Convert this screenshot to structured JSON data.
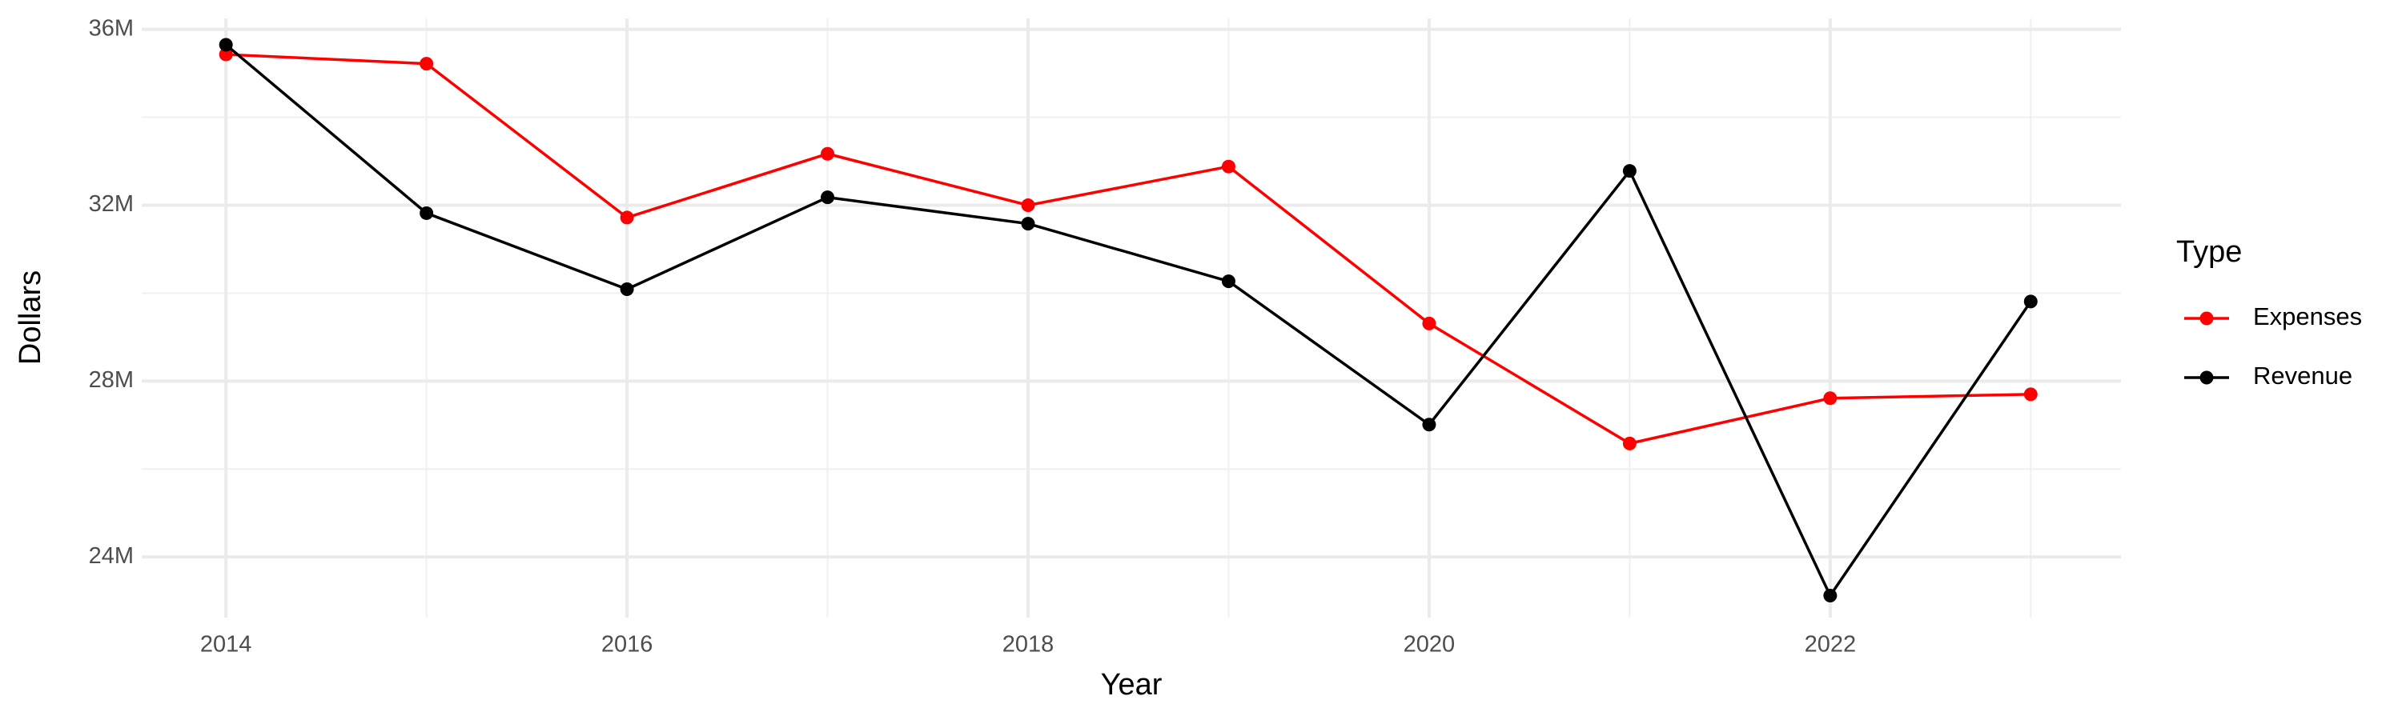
{
  "chart_data": {
    "type": "line",
    "x_label": "Year",
    "y_label": "Dollars",
    "legend_title": "Type",
    "x": [
      2014,
      2015,
      2016,
      2017,
      2018,
      2019,
      2020,
      2021,
      2022,
      2023
    ],
    "series": [
      {
        "name": "Expenses",
        "color": "#ff0000",
        "values": [
          35430000,
          35220000,
          31720000,
          33170000,
          32000000,
          32880000,
          29310000,
          26580000,
          27610000,
          27700000
        ]
      },
      {
        "name": "Revenue",
        "color": "#000000",
        "values": [
          35650000,
          31820000,
          30090000,
          32180000,
          31580000,
          30270000,
          27010000,
          32780000,
          23120000,
          29810000
        ]
      }
    ],
    "xlim": [
      2013.58,
      2023.45
    ],
    "xticks": [
      2014,
      2016,
      2018,
      2020,
      2022
    ],
    "ylim": [
      22620000,
      36250000
    ],
    "yticks": [
      {
        "value": 24000000,
        "label": "24M"
      },
      {
        "value": 28000000,
        "label": "28M"
      },
      {
        "value": 32000000,
        "label": "32M"
      },
      {
        "value": 36000000,
        "label": "36M"
      }
    ],
    "grid": true,
    "legend": "right"
  }
}
